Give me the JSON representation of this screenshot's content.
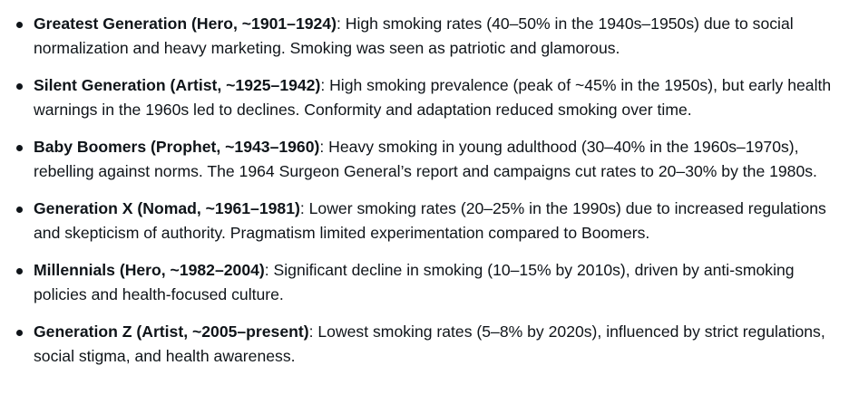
{
  "items": [
    {
      "label": "Greatest Generation (Hero, ~1901–1924)",
      "text": ": High smoking rates (40–50% in the 1940s–1950s) due to social normalization and heavy marketing. Smoking was seen as patriotic and glamorous."
    },
    {
      "label": "Silent Generation (Artist, ~1925–1942)",
      "text": ": High smoking prevalence (peak of ~45% in the 1950s), but early health warnings in the 1960s led to declines. Conformity and adaptation reduced smoking over time."
    },
    {
      "label": "Baby Boomers (Prophet, ~1943–1960)",
      "text": ": Heavy smoking in young adulthood (30–40% in the 1960s–1970s), rebelling against norms. The 1964 Surgeon General’s report and campaigns cut rates to 20–30% by the 1980s."
    },
    {
      "label": "Generation X (Nomad, ~1961–1981)",
      "text": ": Lower smoking rates (20–25% in the 1990s) due to increased regulations and skepticism of authority. Pragmatism limited experimentation compared to Boomers."
    },
    {
      "label": "Millennials (Hero, ~1982–2004)",
      "text": ": Significant decline in smoking (10–15% by 2010s), driven by anti-smoking policies and health-focused culture."
    },
    {
      "label": "Generation Z (Artist, ~2005–present)",
      "text": ": Lowest smoking rates (5–8% by 2020s), influenced by strict regulations, social stigma, and health awareness."
    }
  ]
}
